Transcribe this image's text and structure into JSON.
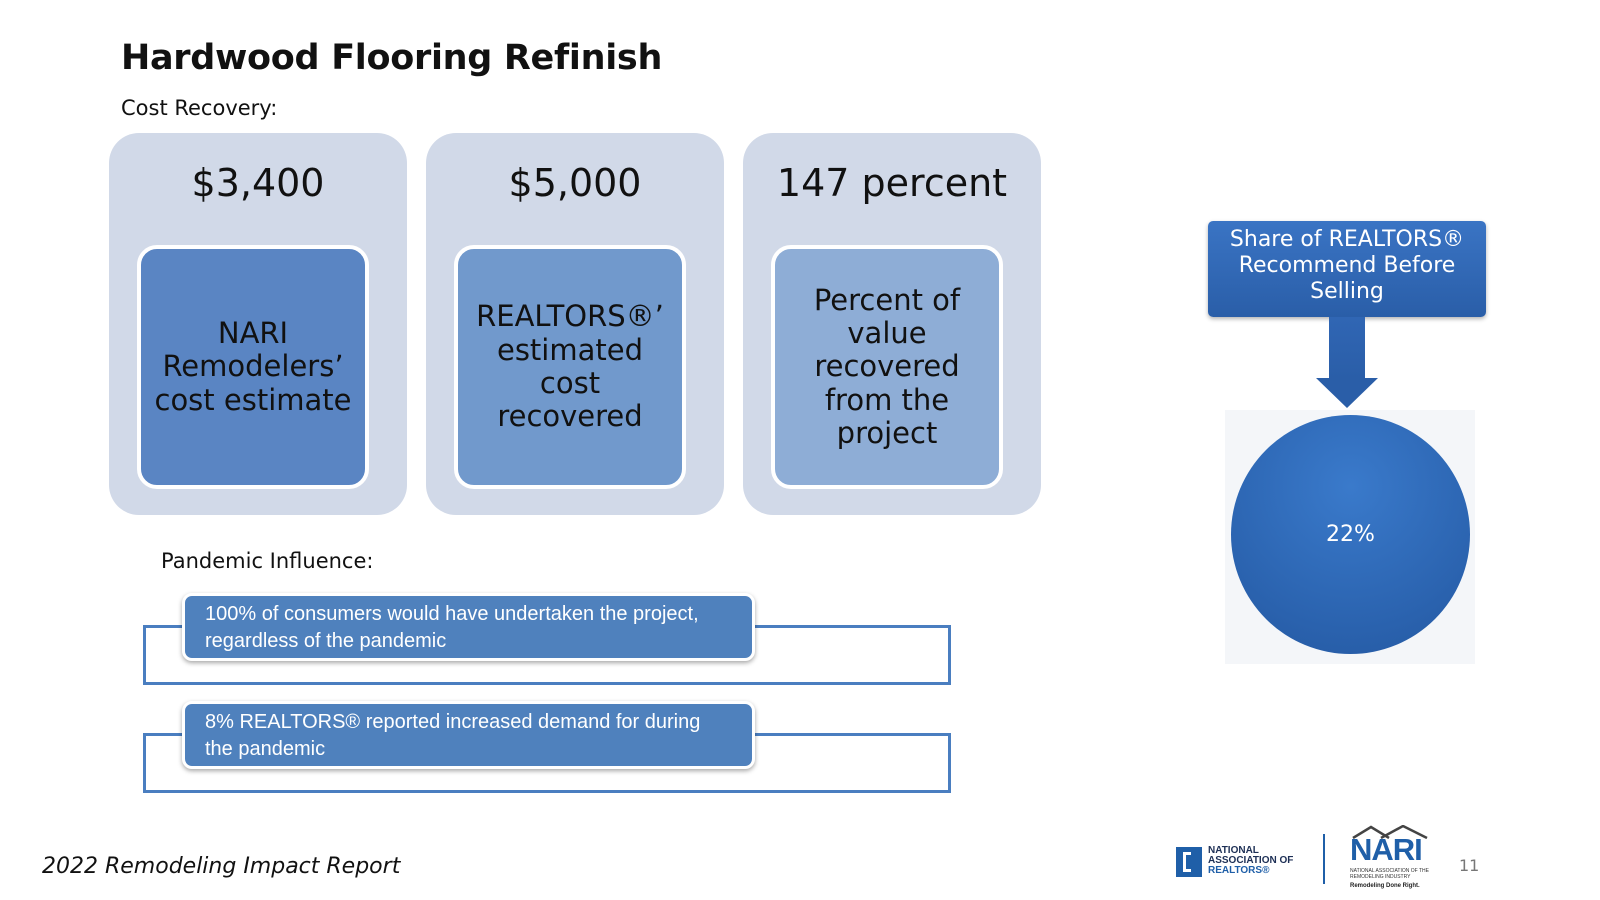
{
  "slide": {
    "title": "Hardwood Flooring Refinish",
    "cost_recovery_label": "Cost Recovery:",
    "cards": [
      {
        "value": "$3,400",
        "description": "NARI Remodelers’ cost estimate"
      },
      {
        "value": "$5,000",
        "description": "REALTORS®’ estimated cost recovered"
      },
      {
        "value": "147 percent",
        "description": "Percent of value recovered from the project"
      }
    ],
    "pandemic_label": "Pandemic Influence:",
    "pandemic_items": [
      {
        "text": "100% of consumers would have undertaken the project, regardless of the pandemic"
      },
      {
        "text": "8% REALTORS® reported increased demand for during the pandemic"
      }
    ],
    "share": {
      "label": "Share of REALTORS® Recommend Before Selling",
      "value": "22%"
    },
    "footer": "2022 Remodeling Impact Report",
    "page_number": "11"
  },
  "logos": {
    "nar": {
      "line1": "NATIONAL",
      "line2": "ASSOCIATION OF",
      "line3": "REALTORS®"
    },
    "nari": {
      "word": "NARI",
      "subtitle": "NATIONAL ASSOCIATION OF THE REMODELING INDUSTRY",
      "tagline": "Remodeling Done Right."
    }
  },
  "colors": {
    "card_bg": "#d1d9e8",
    "card_inner_1": "#5a85c3",
    "card_inner_2": "#7199cc",
    "card_inner_3": "#8eadd6",
    "accent_blue": "#4f81bd",
    "circle_blue": "#2a62ae"
  }
}
